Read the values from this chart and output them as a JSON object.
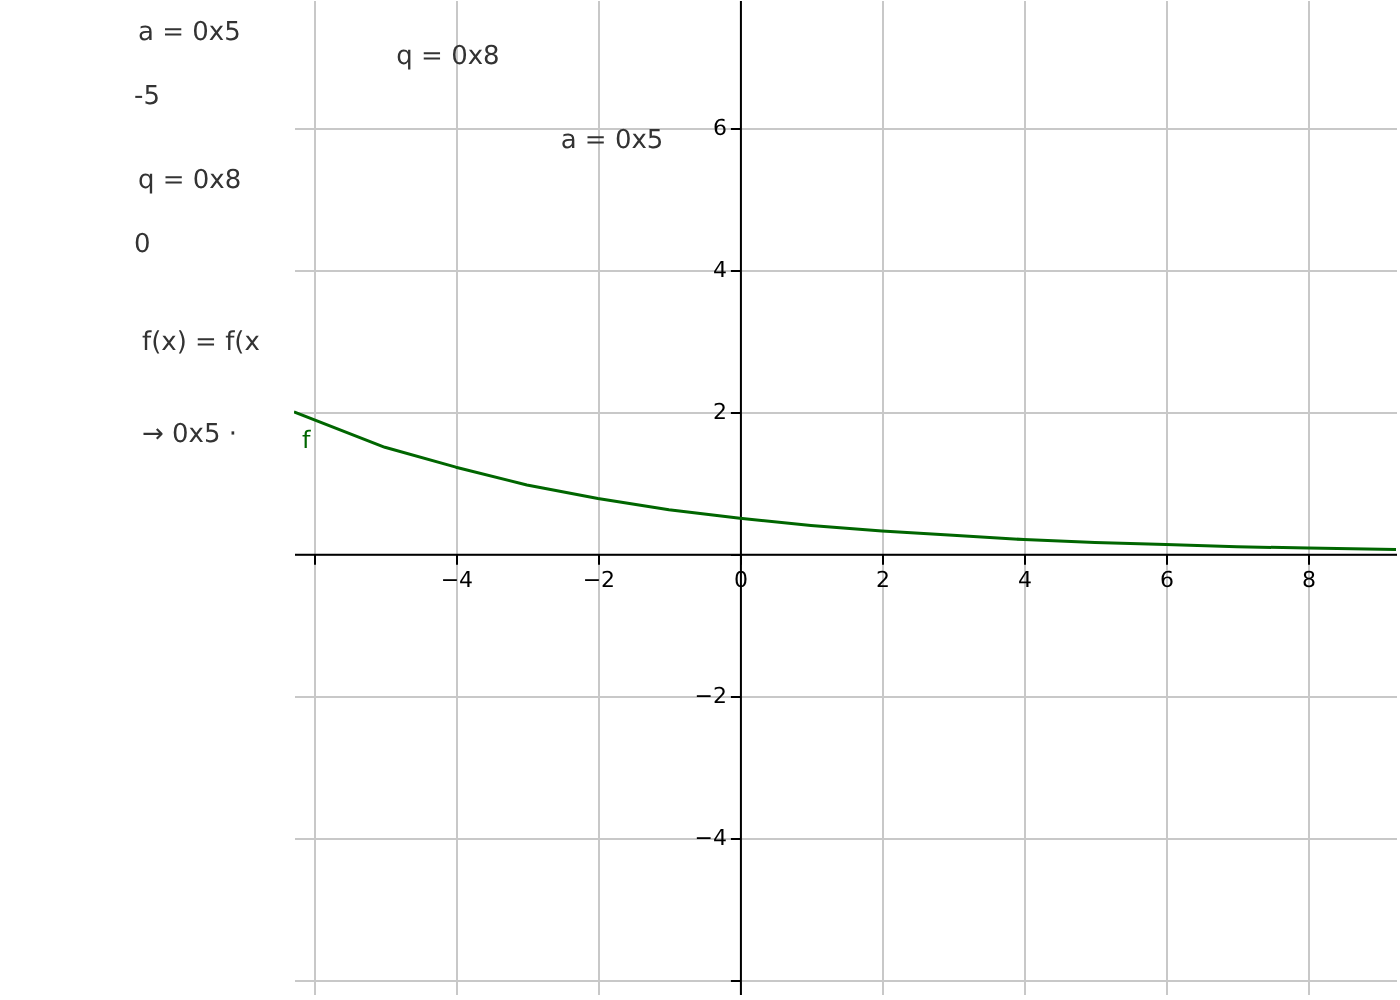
{
  "chart_data": {
    "type": "line",
    "x": [
      -6.28,
      -5,
      -4,
      -3,
      -2,
      -1,
      0,
      1,
      2,
      3,
      4,
      5,
      6,
      7,
      8,
      9.24
    ],
    "series": [
      {
        "name": "f",
        "color": "#006600",
        "values": [
          2.0,
          1.5,
          1.22,
          0.97,
          0.78,
          0.62,
          0.5,
          0.4,
          0.32,
          0.26,
          0.2,
          0.16,
          0.13,
          0.1,
          0.08,
          0.06
        ]
      }
    ],
    "xlim": [
      -6.28,
      9.24
    ],
    "ylim": [
      -6.2,
      7.8
    ],
    "xticks": [
      {
        "value": -6,
        "label": null
      },
      {
        "value": -4,
        "label": "−4"
      },
      {
        "value": -2,
        "label": "−2"
      },
      0,
      2,
      4,
      6,
      8
    ],
    "yticks": [
      {
        "value": -6,
        "label": null
      },
      {
        "value": -4,
        "label": "−4"
      },
      {
        "value": -2,
        "label": "−2"
      },
      {
        "value": 0,
        "label": null
      },
      2,
      4,
      6
    ],
    "grid": true,
    "marker": "none",
    "line_style": "solid",
    "annotations": [
      "a = 0x5",
      "-5",
      "q = 0x8",
      "0",
      "f(x) = f(x",
      "→  0x5 ·",
      "q = 0x8",
      "a = 0x5"
    ]
  }
}
